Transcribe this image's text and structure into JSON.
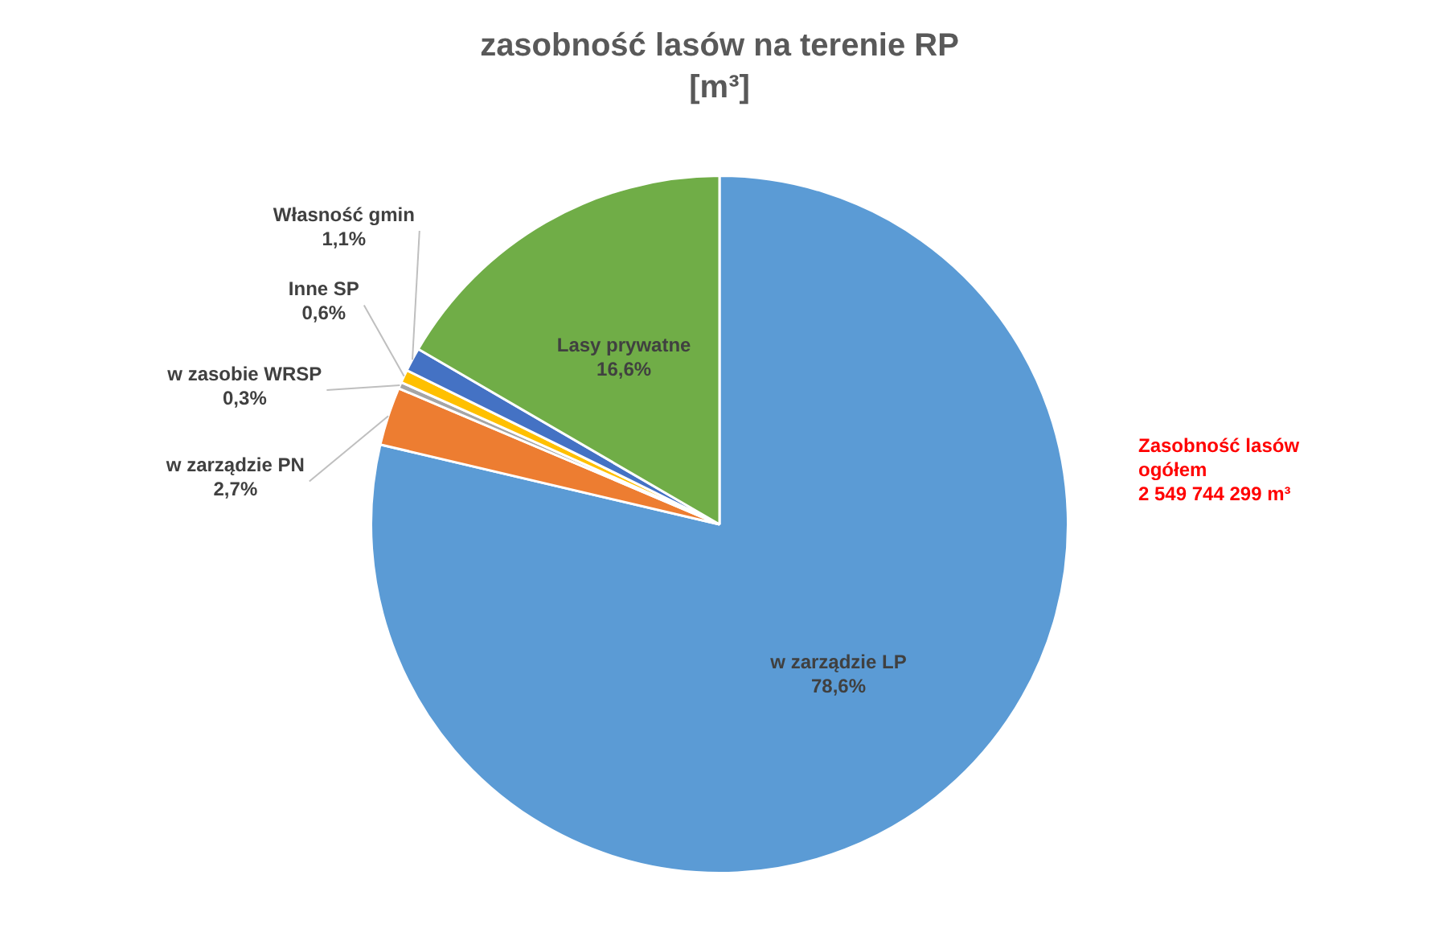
{
  "chart_data": {
    "type": "pie",
    "title": "zasobność lasów na terenie RP",
    "subtitle": "[m³]",
    "categories": [
      "w zarządzie LP",
      "w zarządzie PN",
      "w zasobie WRSP",
      "Inne SP",
      "Własność gmin",
      "Lasy prywatne"
    ],
    "values": [
      78.6,
      2.7,
      0.3,
      0.6,
      1.1,
      16.6
    ],
    "value_labels": [
      "78,6%",
      "2,7%",
      "0,3%",
      "0,6%",
      "1,1%",
      "16,6%"
    ],
    "colors": [
      "#5b9bd5",
      "#ed7d31",
      "#a5a5a5",
      "#ffc000",
      "#4472c4",
      "#70ad47"
    ],
    "legend": false,
    "annotations": [
      "Zasobność lasów\nogółem\n2 549 744 299 m³"
    ]
  }
}
